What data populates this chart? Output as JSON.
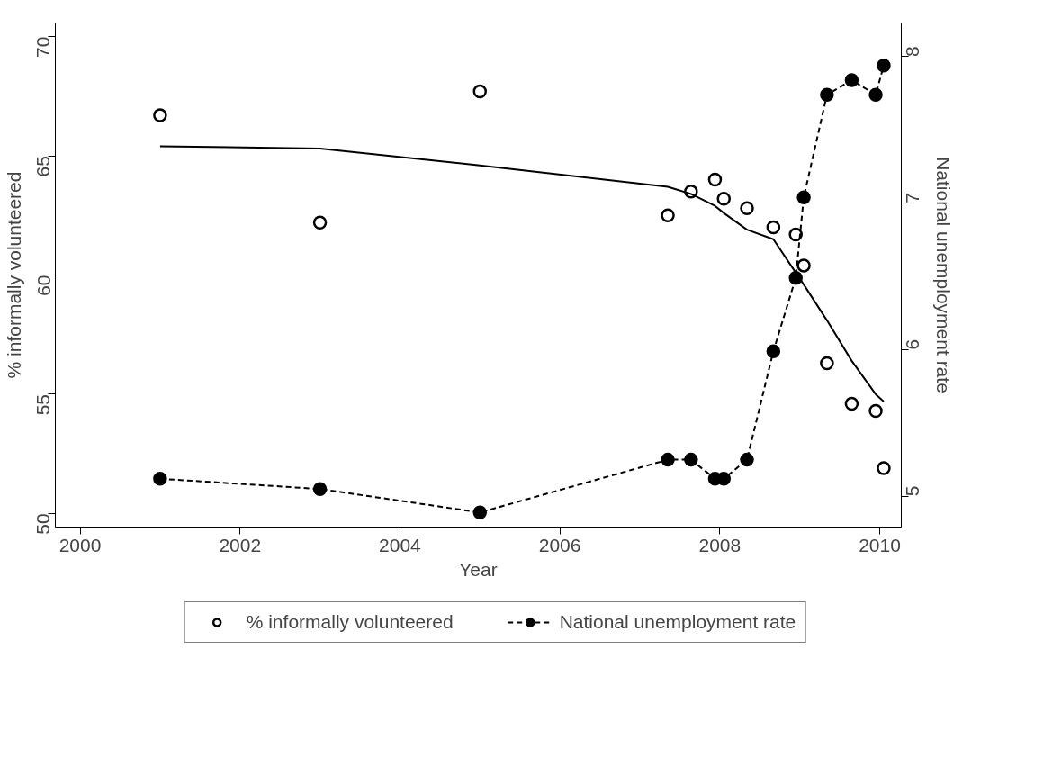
{
  "chart_data": {
    "type": "line",
    "xlabel": "Year",
    "ylabel": "% informally volunteered",
    "y2label": "National unemployment rate",
    "xlim": [
      1999.69,
      2010.27
    ],
    "xticks": [
      2000,
      2002,
      2004,
      2006,
      2008,
      2010
    ],
    "ylim": [
      49.43,
      70.57
    ],
    "yticks": [
      50,
      55,
      60,
      65,
      70
    ],
    "y2lim": [
      4.79,
      8.23
    ],
    "y2ticks": [
      5,
      6,
      7,
      8
    ],
    "grid": false,
    "legend": "bottom",
    "series": [
      {
        "name": "% informally volunteered",
        "type": "scatter",
        "marker": "circle",
        "color": "#000000",
        "x": [
          2001,
          2003,
          2005,
          2007.35,
          2007.64,
          2007.94,
          2008.05,
          2008.34,
          2008.67,
          2008.95,
          2009.05,
          2009.34,
          2009.65,
          2009.95,
          2010.05
        ],
        "values": [
          66.7,
          62.2,
          67.7,
          62.5,
          63.5,
          64.0,
          63.2,
          62.8,
          62.0,
          61.7,
          60.4,
          56.3,
          54.6,
          54.3,
          51.9
        ]
      },
      {
        "line_style": "solid",
        "marker": "none",
        "color": "#000000",
        "x": [
          2001,
          2003,
          2005,
          2007.35,
          2007.64,
          2007.94,
          2008.05,
          2008.34,
          2008.67,
          2008.95,
          2009.05,
          2009.34,
          2009.65,
          2009.95,
          2010.05
        ],
        "values": [
          65.4,
          65.3,
          64.6,
          63.7,
          63.4,
          62.9,
          62.6,
          61.9,
          61.5,
          60.1,
          59.6,
          58.1,
          56.4,
          55.0,
          54.7
        ]
      },
      {
        "name": "National unemployment rate",
        "axis": "y2",
        "line_style": "dashed",
        "marker": "circle",
        "color": "#000000",
        "x": [
          2001,
          2003,
          2005,
          2007.35,
          2007.64,
          2007.94,
          2008.05,
          2008.34,
          2008.67,
          2008.95,
          2009.05,
          2009.34,
          2009.65,
          2009.95,
          2010.05
        ],
        "values": [
          5.12,
          5.05,
          4.89,
          5.25,
          5.25,
          5.12,
          5.12,
          5.25,
          5.99,
          6.49,
          7.04,
          7.74,
          7.84,
          7.74,
          7.94
        ]
      }
    ]
  }
}
